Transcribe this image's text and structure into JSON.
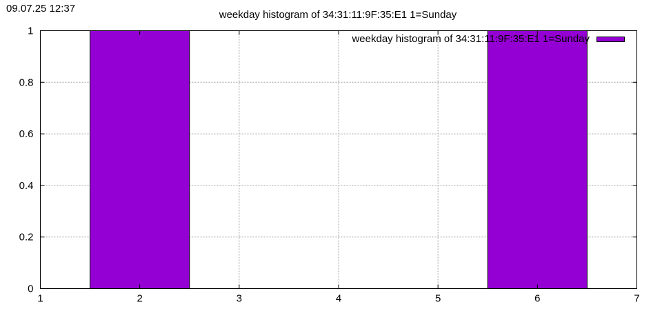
{
  "timestamp": "09.07.25 12:37",
  "chart_data": {
    "type": "bar",
    "title": "weekday histogram of 34:31:11:9F:35:E1 1=Sunday",
    "xlabel": "",
    "ylabel": "",
    "xlim": [
      1,
      7
    ],
    "ylim": [
      0,
      1
    ],
    "x_ticks": [
      "1",
      "2",
      "3",
      "4",
      "5",
      "6",
      "7"
    ],
    "y_ticks": [
      "0",
      "0.2",
      "0.4",
      "0.6",
      "0.8",
      "1"
    ],
    "grid": true,
    "legend_position": "top-right",
    "series": [
      {
        "name": "weekday histogram of 34:31:11:9F:35:E1 1=Sunday",
        "color": "#9400d3",
        "x": [
          2,
          6
        ],
        "values": [
          1,
          1
        ],
        "bar_width": 1
      }
    ]
  }
}
